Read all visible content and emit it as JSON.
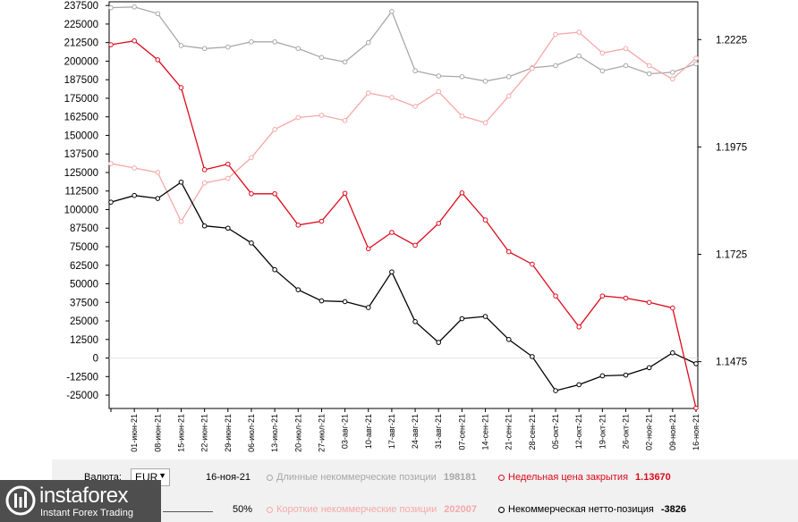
{
  "chart_data": {
    "type": "line",
    "categories": [
      "",
      "01-июн-21",
      "08-июн-21",
      "15-июн-21",
      "22-июн-21",
      "29-июн-21",
      "06-июл-21",
      "13-июл-21",
      "20-июл-21",
      "27-июл-21",
      "03-авг-21",
      "10-авг-21",
      "17-авг-21",
      "24-авг-21",
      "31-авг-21",
      "07-сен-21",
      "14-сен-21",
      "21-сен-21",
      "28-сен-21",
      "05-окт-21",
      "12-окт-21",
      "19-окт-21",
      "26-окт-21",
      "02-ноя-21",
      "09-ноя-21",
      "16-ноя-21"
    ],
    "left_axis": {
      "ylim": [
        -34000,
        240000
      ],
      "ticks": [
        237500,
        225000,
        212500,
        200000,
        187500,
        175000,
        162500,
        150000,
        137500,
        125000,
        112500,
        100000,
        87500,
        75000,
        62500,
        50000,
        37500,
        25000,
        12500,
        0,
        -12500,
        -25000
      ]
    },
    "right_axis": {
      "ylim": [
        1.1366,
        1.2313
      ],
      "ticks": [
        1.2225,
        1.1975,
        1.1725,
        1.1475
      ]
    },
    "series": [
      {
        "axis": "left",
        "color": "#a8a8a8",
        "values": [
          236000,
          236500,
          232000,
          210500,
          208500,
          209500,
          213000,
          213000,
          208500,
          202500,
          199500,
          212500,
          233500,
          193500,
          190000,
          189500,
          186500,
          189500,
          195500,
          197000,
          203500,
          193500,
          197000,
          191500,
          192500,
          198181
        ]
      },
      {
        "axis": "left",
        "color": "#f6a8a8",
        "values": [
          131000,
          128000,
          125000,
          92000,
          118000,
          121000,
          135000,
          154000,
          162000,
          163500,
          160000,
          178500,
          175500,
          169500,
          179500,
          163000,
          158500,
          176500,
          195000,
          218000,
          219500,
          205500,
          208500,
          197000,
          188000,
          202007
        ]
      },
      {
        "axis": "left",
        "color": "#000000",
        "values": [
          105000,
          109500,
          107500,
          118500,
          89000,
          87500,
          77500,
          59500,
          46000,
          38500,
          38000,
          34000,
          58000,
          24500,
          10500,
          26500,
          28000,
          12500,
          1000,
          -22000,
          -18000,
          -12000,
          -11500,
          -6500,
          3500,
          -3826
        ]
      },
      {
        "axis": "right",
        "color": "#dd0a1c",
        "values": [
          1.2213,
          1.2222,
          1.2178,
          1.2113,
          1.1922,
          1.1935,
          1.1866,
          1.1866,
          1.1793,
          1.1802,
          1.1867,
          1.1738,
          1.1776,
          1.1746,
          1.1797,
          1.1868,
          1.1805,
          1.1731,
          1.1702,
          1.1628,
          1.1556,
          1.1628,
          1.1623,
          1.1613,
          1.16,
          1.1367
        ]
      }
    ]
  },
  "info": {
    "currency_label": "Валюта:",
    "currency_value": "EUR",
    "date": "16-ноя-21",
    "long_label": "Длинные некоммерческие позиции",
    "long_value": "198181",
    "short_label": "Короткие некоммерческие позиции",
    "short_value": "202007",
    "close_label": "Недельная цена закрытия",
    "close_value": "1.13670",
    "net_label": "Некоммерческая нетто-позиция",
    "net_value": "-3826",
    "zoom": "50%",
    "colors": {
      "long": "#a8a8a8",
      "short": "#f6a8a8",
      "close": "#dd0a1c",
      "net": "#000000"
    }
  },
  "logo": {
    "name": "instaforex",
    "tagline": "Instant Forex Trading"
  }
}
